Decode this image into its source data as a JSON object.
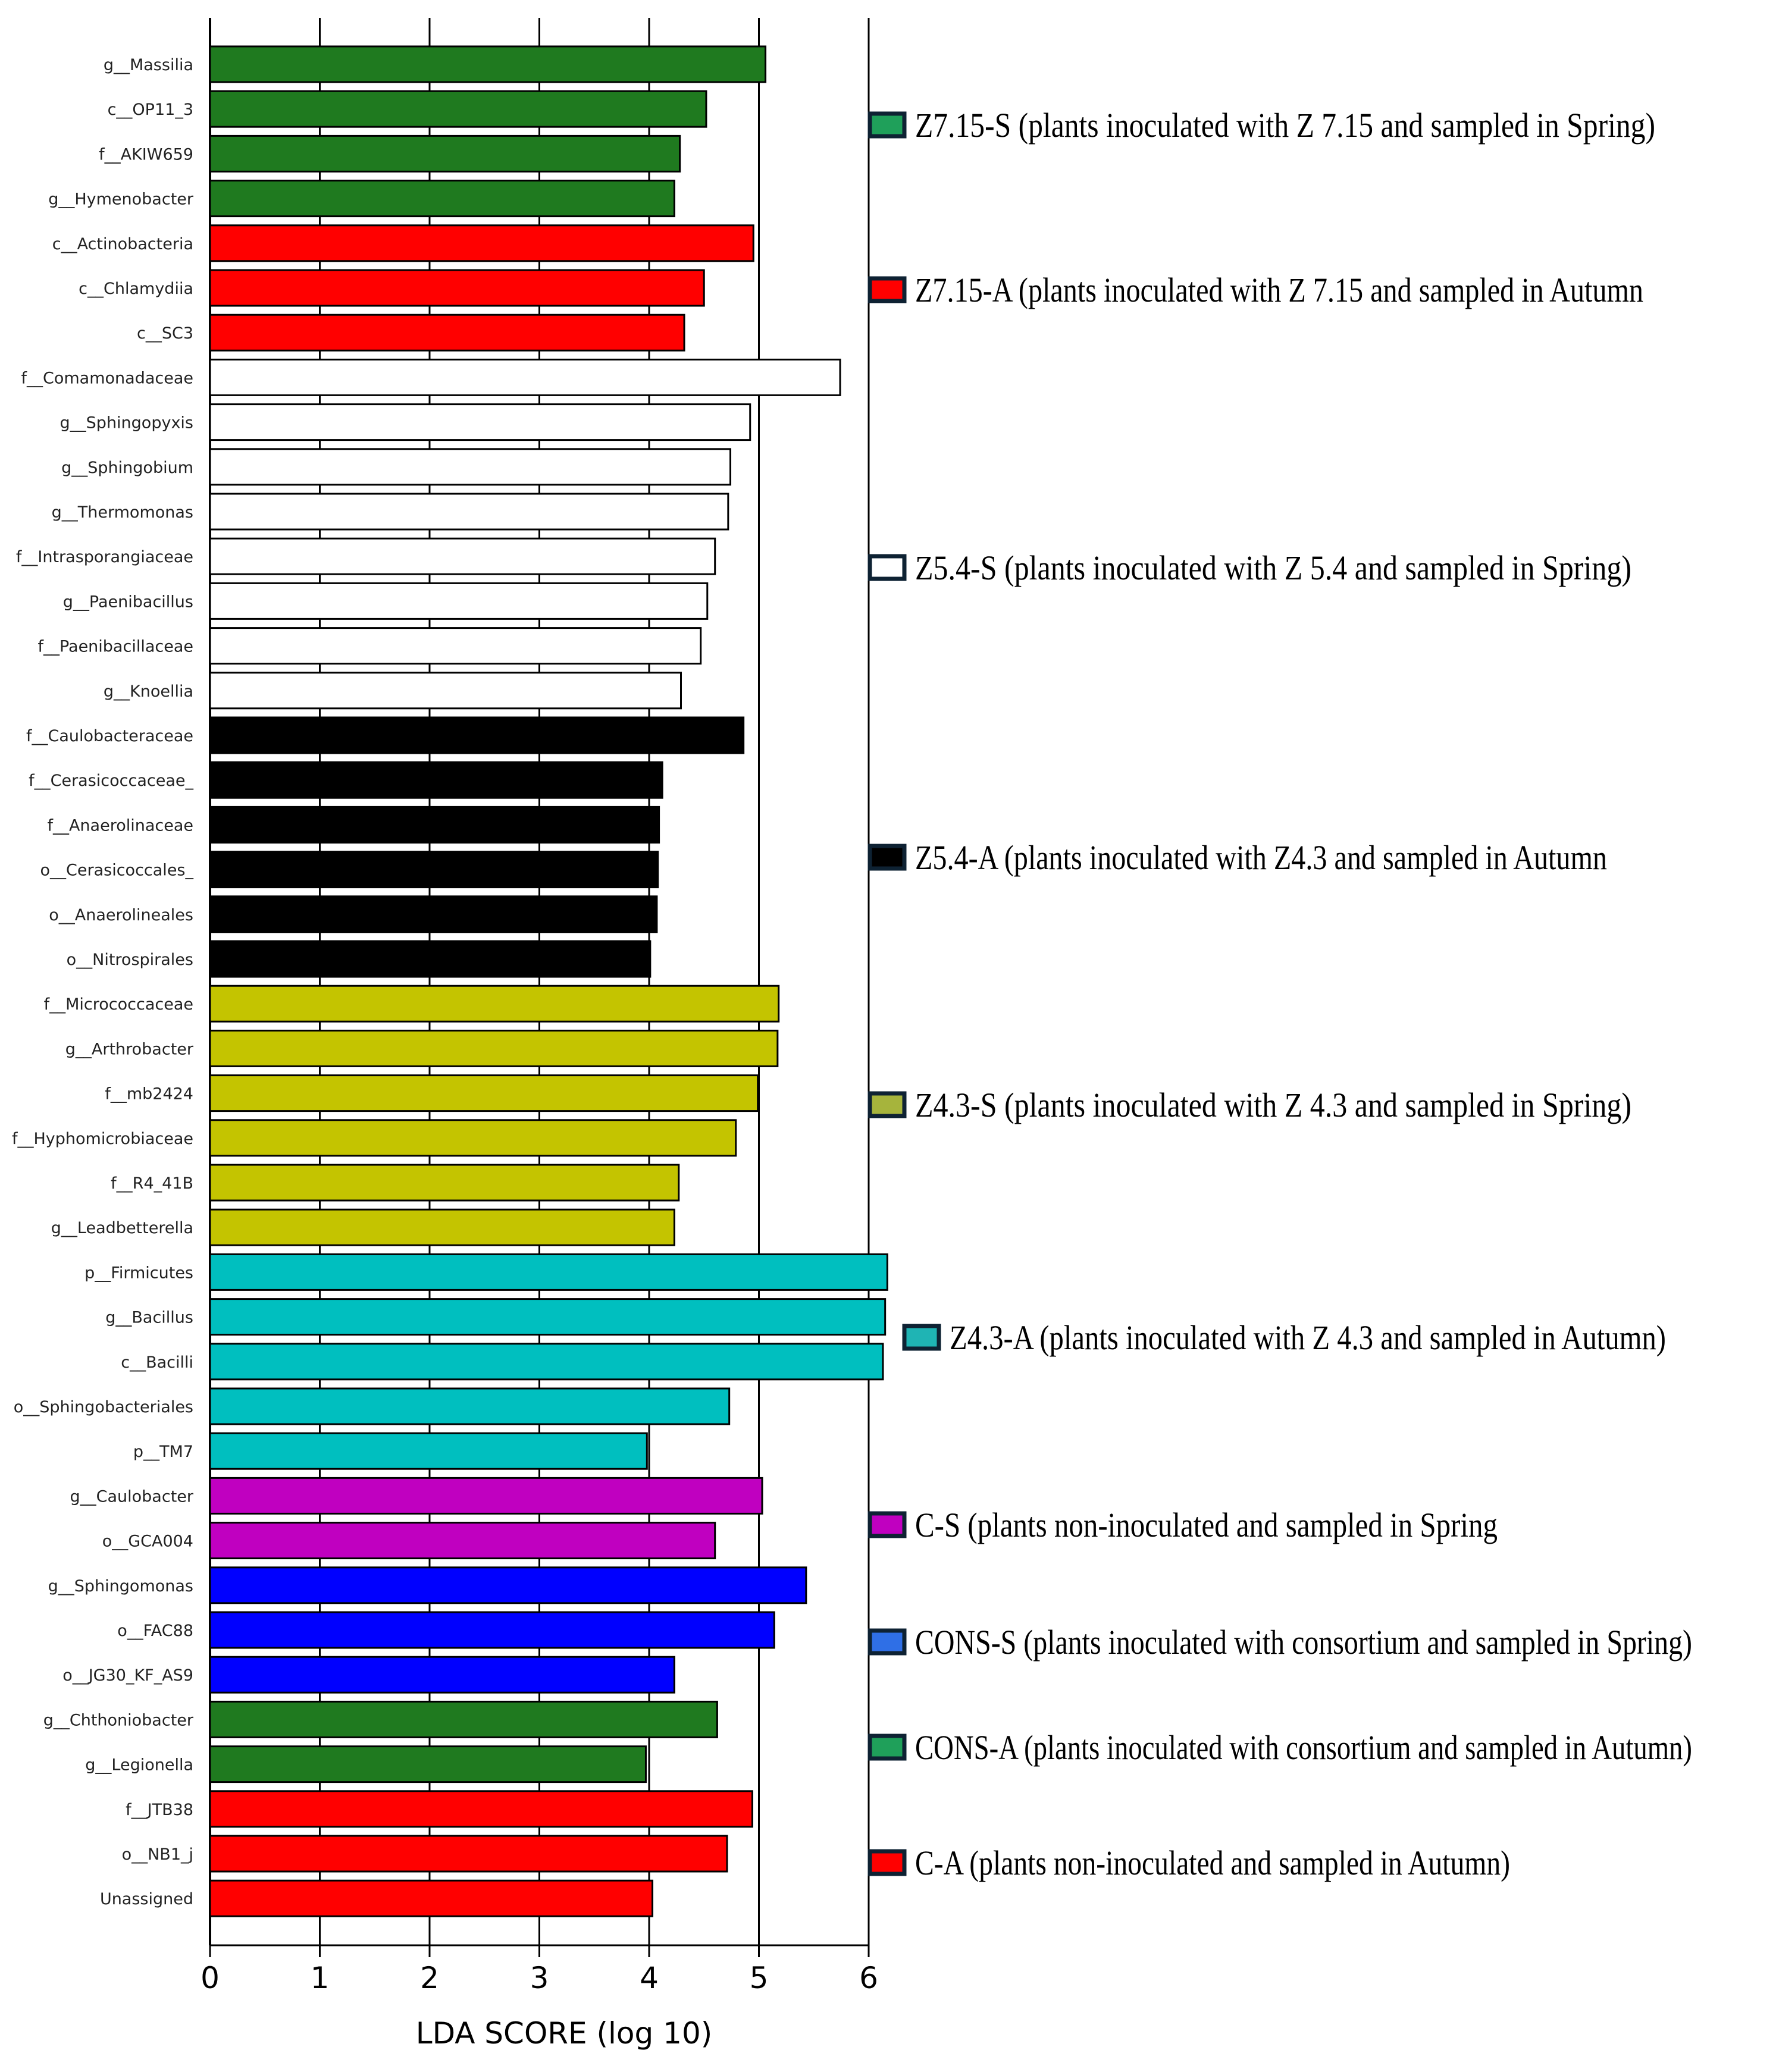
{
  "chart_data": {
    "type": "bar",
    "orientation": "horizontal",
    "title": "",
    "xlabel": "LDA SCORE (log 10)",
    "ylabel": "",
    "xlim": [
      0,
      6
    ],
    "xticks": [
      "0",
      "1",
      "2",
      "3",
      "4",
      "5",
      "6"
    ],
    "grid": true,
    "legend_position": "right",
    "categories": [
      "g__Massilia",
      "c__OP11_3",
      "f__AKIW659",
      "g__Hymenobacter",
      "c__Actinobacteria",
      "c__Chlamydiia",
      "c__SC3",
      "f__Comamonadaceae",
      "g__Sphingopyxis",
      "g__Sphingobium",
      "g__Thermomonas",
      "f__Intrasporangiaceae",
      "g__Paenibacillus",
      "f__Paenibacillaceae",
      "g__Knoellia",
      "f__Caulobacteraceae",
      "f__Cerasicoccaceae_",
      "f__Anaerolinaceae",
      "o__Cerasicoccales_",
      "o__Anaerolineales",
      "o__Nitrospirales",
      "f__Micrococcaceae",
      "g__Arthrobacter",
      "f__mb2424",
      "f__Hyphomicrobiaceae",
      "f__R4_41B",
      "g__Leadbetterella",
      "p__Firmicutes",
      "g__Bacillus",
      "c__Bacilli",
      "o__Sphingobacteriales",
      "p__TM7",
      "g__Caulobacter",
      "o__GCA004",
      "g__Sphingomonas",
      "o__FAC88",
      "o__JG30_KF_AS9",
      "g__Chthoniobacter",
      "g__Legionella",
      "f__JTB38",
      "o__NB1_j",
      "Unassigned"
    ],
    "values": [
      5.06,
      4.52,
      4.28,
      4.23,
      4.95,
      4.5,
      4.32,
      5.74,
      4.92,
      4.74,
      4.72,
      4.6,
      4.53,
      4.47,
      4.29,
      4.86,
      4.12,
      4.09,
      4.08,
      4.07,
      4.01,
      5.18,
      5.17,
      4.99,
      4.79,
      4.27,
      4.23,
      6.17,
      6.15,
      6.13,
      4.73,
      3.98,
      5.03,
      4.6,
      5.43,
      5.14,
      4.23,
      4.62,
      3.97,
      4.94,
      4.71,
      4.03
    ],
    "groups": [
      0,
      0,
      0,
      0,
      1,
      1,
      1,
      2,
      2,
      2,
      2,
      2,
      2,
      2,
      2,
      3,
      3,
      3,
      3,
      3,
      3,
      4,
      4,
      4,
      4,
      4,
      4,
      5,
      5,
      5,
      5,
      5,
      6,
      6,
      7,
      7,
      7,
      8,
      8,
      9,
      9,
      9
    ],
    "series": [
      {
        "name": "Z7.15-S",
        "label": "Z7.15-S (plants inoculated with Z 7.15 and sampled in Spring)",
        "color": "#1f7a1f",
        "legend_color": "#1fa05a"
      },
      {
        "name": "Z7.15-A",
        "label": "Z7.15-A (plants inoculated with Z 7.15 and sampled in Autumn",
        "color": "#ff0000",
        "legend_color": "#ff0000"
      },
      {
        "name": "Z5.4-S",
        "label": "Z5.4-S (plants inoculated with Z 5.4 and sampled in Spring)",
        "color": "#ffffff",
        "legend_color": "#ffffff"
      },
      {
        "name": "Z5.4-A",
        "label": "Z5.4-A (plants inoculated with Z4.3 and sampled in Autumn",
        "color": "#000000",
        "legend_color": "#000000"
      },
      {
        "name": "Z4.3-S",
        "label": "Z4.3-S (plants inoculated with Z 4.3 and sampled in Spring)",
        "color": "#c4c400",
        "legend_color": "#a6b43c"
      },
      {
        "name": "Z4.3-A",
        "label": "Z4.3-A (plants inoculated with Z 4.3 and sampled in Autumn)",
        "color": "#00bfbf",
        "legend_color": "#1fb4b4"
      },
      {
        "name": "C-S",
        "label": "C-S (plants non-inoculated and sampled in Spring",
        "color": "#c000c0",
        "legend_color": "#c000c0"
      },
      {
        "name": "CONS-S",
        "label": "CONS-S (plants inoculated with consortium and sampled in Spring)",
        "color": "#0000ff",
        "legend_color": "#2f6fe6"
      },
      {
        "name": "CONS-A",
        "label": "CONS-A (plants inoculated with consortium and sampled in Autumn)",
        "color": "#1f7a1f",
        "legend_color": "#1fa05a"
      },
      {
        "name": "C-A",
        "label": "C-A (plants non-inoculated and sampled in Autumn)",
        "color": "#ff0000",
        "legend_color": "#ff0000"
      }
    ]
  }
}
